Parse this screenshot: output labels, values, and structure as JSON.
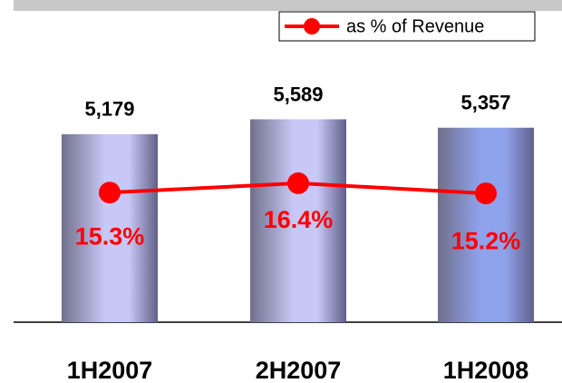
{
  "chart_data": {
    "type": "bar",
    "categories": [
      "1H2007",
      "2H2007",
      "1H2008"
    ],
    "ylim": [
      0,
      7000
    ],
    "y2lim": [
      0,
      30
    ],
    "series": [
      {
        "type": "bar",
        "colors": [
          "#c8c8f6",
          "#c8c8f6",
          "#8fa3ec"
        ],
        "values": [
          5179,
          5589,
          5357
        ],
        "value_labels": [
          "5,179",
          "5,589",
          "5,357"
        ]
      },
      {
        "type": "line",
        "name": "as % of Revenue",
        "color": "#ff0000",
        "axis": "y2",
        "values": [
          15.3,
          16.4,
          15.2
        ],
        "value_labels": [
          "15.3%",
          "16.4%",
          "15.2%"
        ]
      }
    ],
    "legend": "top-right"
  }
}
